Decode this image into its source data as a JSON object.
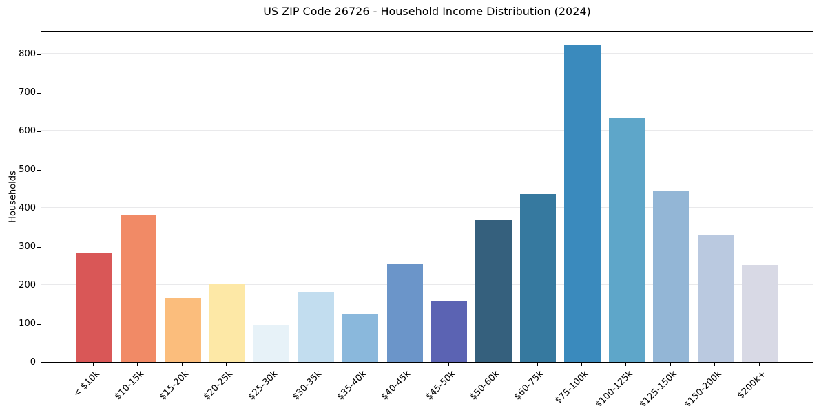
{
  "chart_data": {
    "type": "bar",
    "title": "US ZIP Code 26726 - Household Income Distribution (2024)",
    "xlabel": "",
    "ylabel": "Households",
    "categories": [
      "< $10k",
      "$10-15k",
      "$15-20k",
      "$20-25k",
      "$25-30k",
      "$30-35k",
      "$35-40k",
      "$40-45k",
      "$45-50k",
      "$50-60k",
      "$60-75k",
      "$75-100k",
      "$100-125k",
      "$125-150k",
      "$150-200k",
      "$200k+"
    ],
    "values": [
      284,
      380,
      166,
      201,
      95,
      182,
      123,
      254,
      158,
      370,
      436,
      820,
      631,
      443,
      328,
      252
    ],
    "bar_colors": [
      "#d95757",
      "#f18a66",
      "#fbbd7c",
      "#fde8a6",
      "#e7f2f8",
      "#c2ddef",
      "#8ab8dc",
      "#6b95c9",
      "#5b63b3",
      "#35607d",
      "#36799f",
      "#3a8abd",
      "#5ea6c9",
      "#93b6d6",
      "#bac9e0",
      "#d8d9e5"
    ],
    "ylim": [
      0,
      860
    ],
    "yticks": [
      0,
      100,
      200,
      300,
      400,
      500,
      600,
      700,
      800
    ],
    "grid": "horizontal",
    "legend": "none",
    "colors": {
      "background": "#ffffff",
      "grid": "#e9e9eb",
      "spine": "#000000",
      "text": "#1a1a1a"
    }
  }
}
